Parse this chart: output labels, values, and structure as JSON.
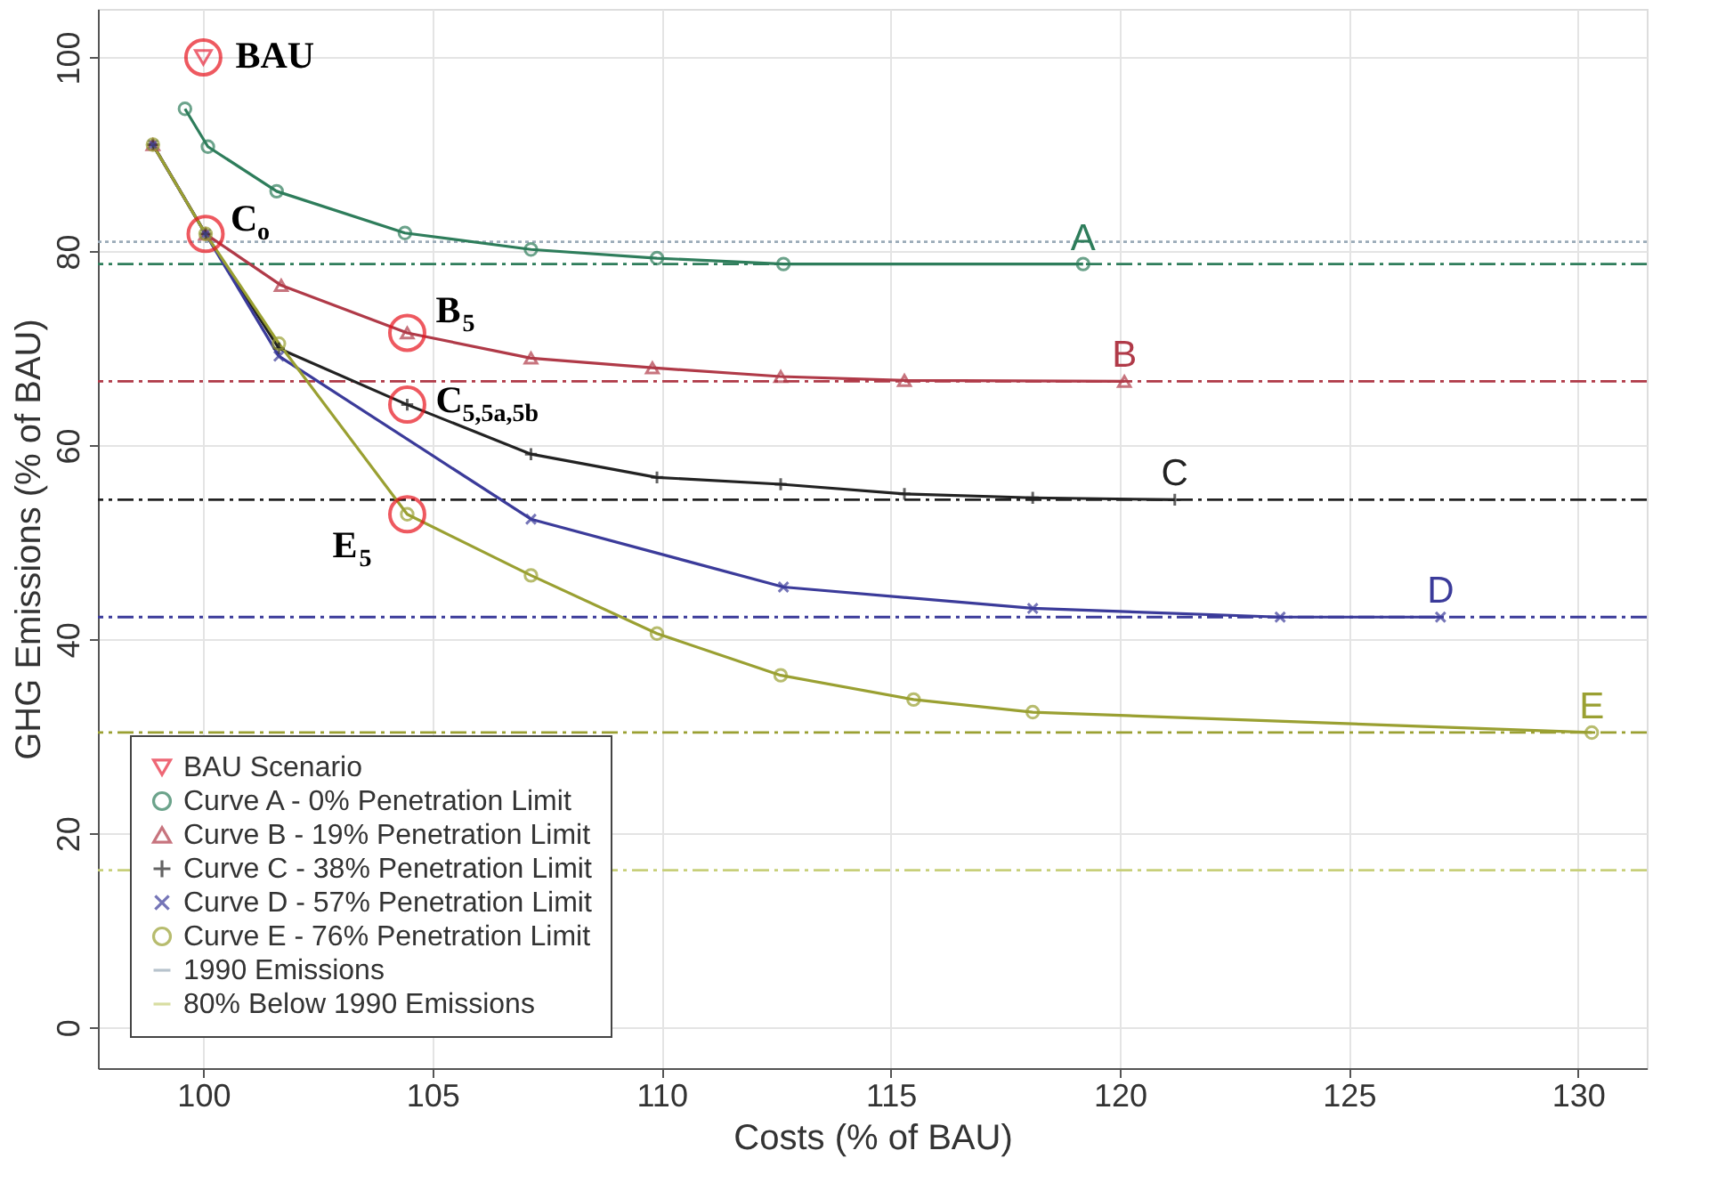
{
  "chart_data": {
    "type": "line",
    "xlabel": "Costs (% of BAU)",
    "ylabel": "GHG Emissions (% of BAU)",
    "xlim": [
      97.7,
      131.5
    ],
    "ylim": [
      -4.2,
      105
    ],
    "xticks": [
      100,
      105,
      110,
      115,
      120,
      125,
      130
    ],
    "yticks": [
      0,
      20,
      40,
      60,
      80,
      100
    ],
    "grid": true,
    "legend": "bottom left",
    "line_style": "solid",
    "series": [
      {
        "name": "BAU Scenario",
        "type": "scatter",
        "marker": "triangle-down",
        "color": "#e8283c",
        "x": [
          100
        ],
        "values": [
          100
        ]
      },
      {
        "name": "Curve A - 0% Penetration Limit",
        "marker": "circle",
        "color": "#2e7d5b",
        "x": [
          99.6,
          100.1,
          101.6,
          104.4,
          107.15,
          109.9,
          112.66,
          119.2
        ],
        "values": [
          94.7,
          90.8,
          86.2,
          81.9,
          80.2,
          79.3,
          78.7,
          78.7
        ]
      },
      {
        "name": "Curve B - 19% Penetration Limit",
        "marker": "triangle",
        "color": "#b03a48",
        "x": [
          98.9,
          100.05,
          101.7,
          104.45,
          107.15,
          109.8,
          112.6,
          115.3,
          120.1
        ],
        "values": [
          91.0,
          81.8,
          76.5,
          71.6,
          69.0,
          68.0,
          67.1,
          66.7,
          66.6
        ]
      },
      {
        "name": "Curve C - 38% Penetration Limit",
        "marker": "cross",
        "color": "#222222",
        "x": [
          98.9,
          100.05,
          101.65,
          104.45,
          107.15,
          109.9,
          112.6,
          115.3,
          118.1,
          121.2
        ],
        "values": [
          91.0,
          81.8,
          70.0,
          64.2,
          59.1,
          56.7,
          56.0,
          55.0,
          54.6,
          54.4
        ]
      },
      {
        "name": "Curve D - 57% Penetration Limit",
        "marker": "x",
        "color": "#3b3b9a",
        "x": [
          98.9,
          100.05,
          101.65,
          107.15,
          112.66,
          118.1,
          123.5,
          127.0
        ],
        "values": [
          91.0,
          81.8,
          69.2,
          52.4,
          45.4,
          43.2,
          42.3,
          42.3
        ]
      },
      {
        "name": "Curve E - 76% Penetration Limit",
        "marker": "circle",
        "color": "#9aa032",
        "x": [
          98.9,
          100.05,
          101.65,
          104.45,
          107.15,
          109.9,
          112.6,
          115.5,
          118.1,
          130.3
        ],
        "values": [
          91.0,
          81.8,
          70.5,
          52.9,
          46.6,
          40.6,
          36.3,
          33.8,
          32.5,
          30.4
        ]
      },
      {
        "type": "scatter",
        "marker": "circle",
        "color": "#e8141e",
        "x": [
          100,
          100.05,
          104.45,
          104.45,
          104.45
        ],
        "values": [
          100,
          81.8,
          71.6,
          64.2,
          52.9
        ]
      }
    ],
    "ref_lines": [
      {
        "axis": "y",
        "value": 81,
        "label": "1990 Emissions",
        "color": "#9aaab8",
        "line_style": "dotted"
      },
      {
        "axis": "y",
        "value": 16.2,
        "label": "80% Below 1990 Emissions",
        "color": "#c8cf7a",
        "line_style": "dashed"
      },
      {
        "axis": "y",
        "value": 78.7,
        "color": "#2e7d5b",
        "line_style": "dashed"
      },
      {
        "axis": "y",
        "value": 66.6,
        "color": "#b03a48",
        "line_style": "dashed"
      },
      {
        "axis": "y",
        "value": 54.4,
        "color": "#222222",
        "line_style": "dashed"
      },
      {
        "axis": "y",
        "value": 42.3,
        "color": "#3b3b9a",
        "line_style": "dashed"
      },
      {
        "axis": "y",
        "value": 30.4,
        "color": "#9aa032",
        "line_style": "dashed"
      }
    ],
    "annotations": [
      {
        "text": "BAU",
        "x": 100,
        "y": 100
      },
      {
        "text": "C$_{o}$",
        "x": 100.05,
        "y": 81.8
      },
      {
        "text": "B$_{5}$",
        "x": 104.45,
        "y": 71.6
      },
      {
        "text": "C$_{5,5a,5b}$",
        "x": 104.45,
        "y": 64.2
      },
      {
        "text": "E$_{5}$",
        "x": 104.45,
        "y": 52.9
      },
      {
        "text": "A",
        "x": 119.2,
        "y": 78.7
      },
      {
        "text": "B",
        "x": 120.1,
        "y": 66.6
      },
      {
        "text": "C",
        "x": 121.2,
        "y": 54.4
      },
      {
        "text": "D",
        "x": 127.0,
        "y": 42.3
      },
      {
        "text": "E",
        "x": 130.3,
        "y": 30.4
      }
    ]
  }
}
